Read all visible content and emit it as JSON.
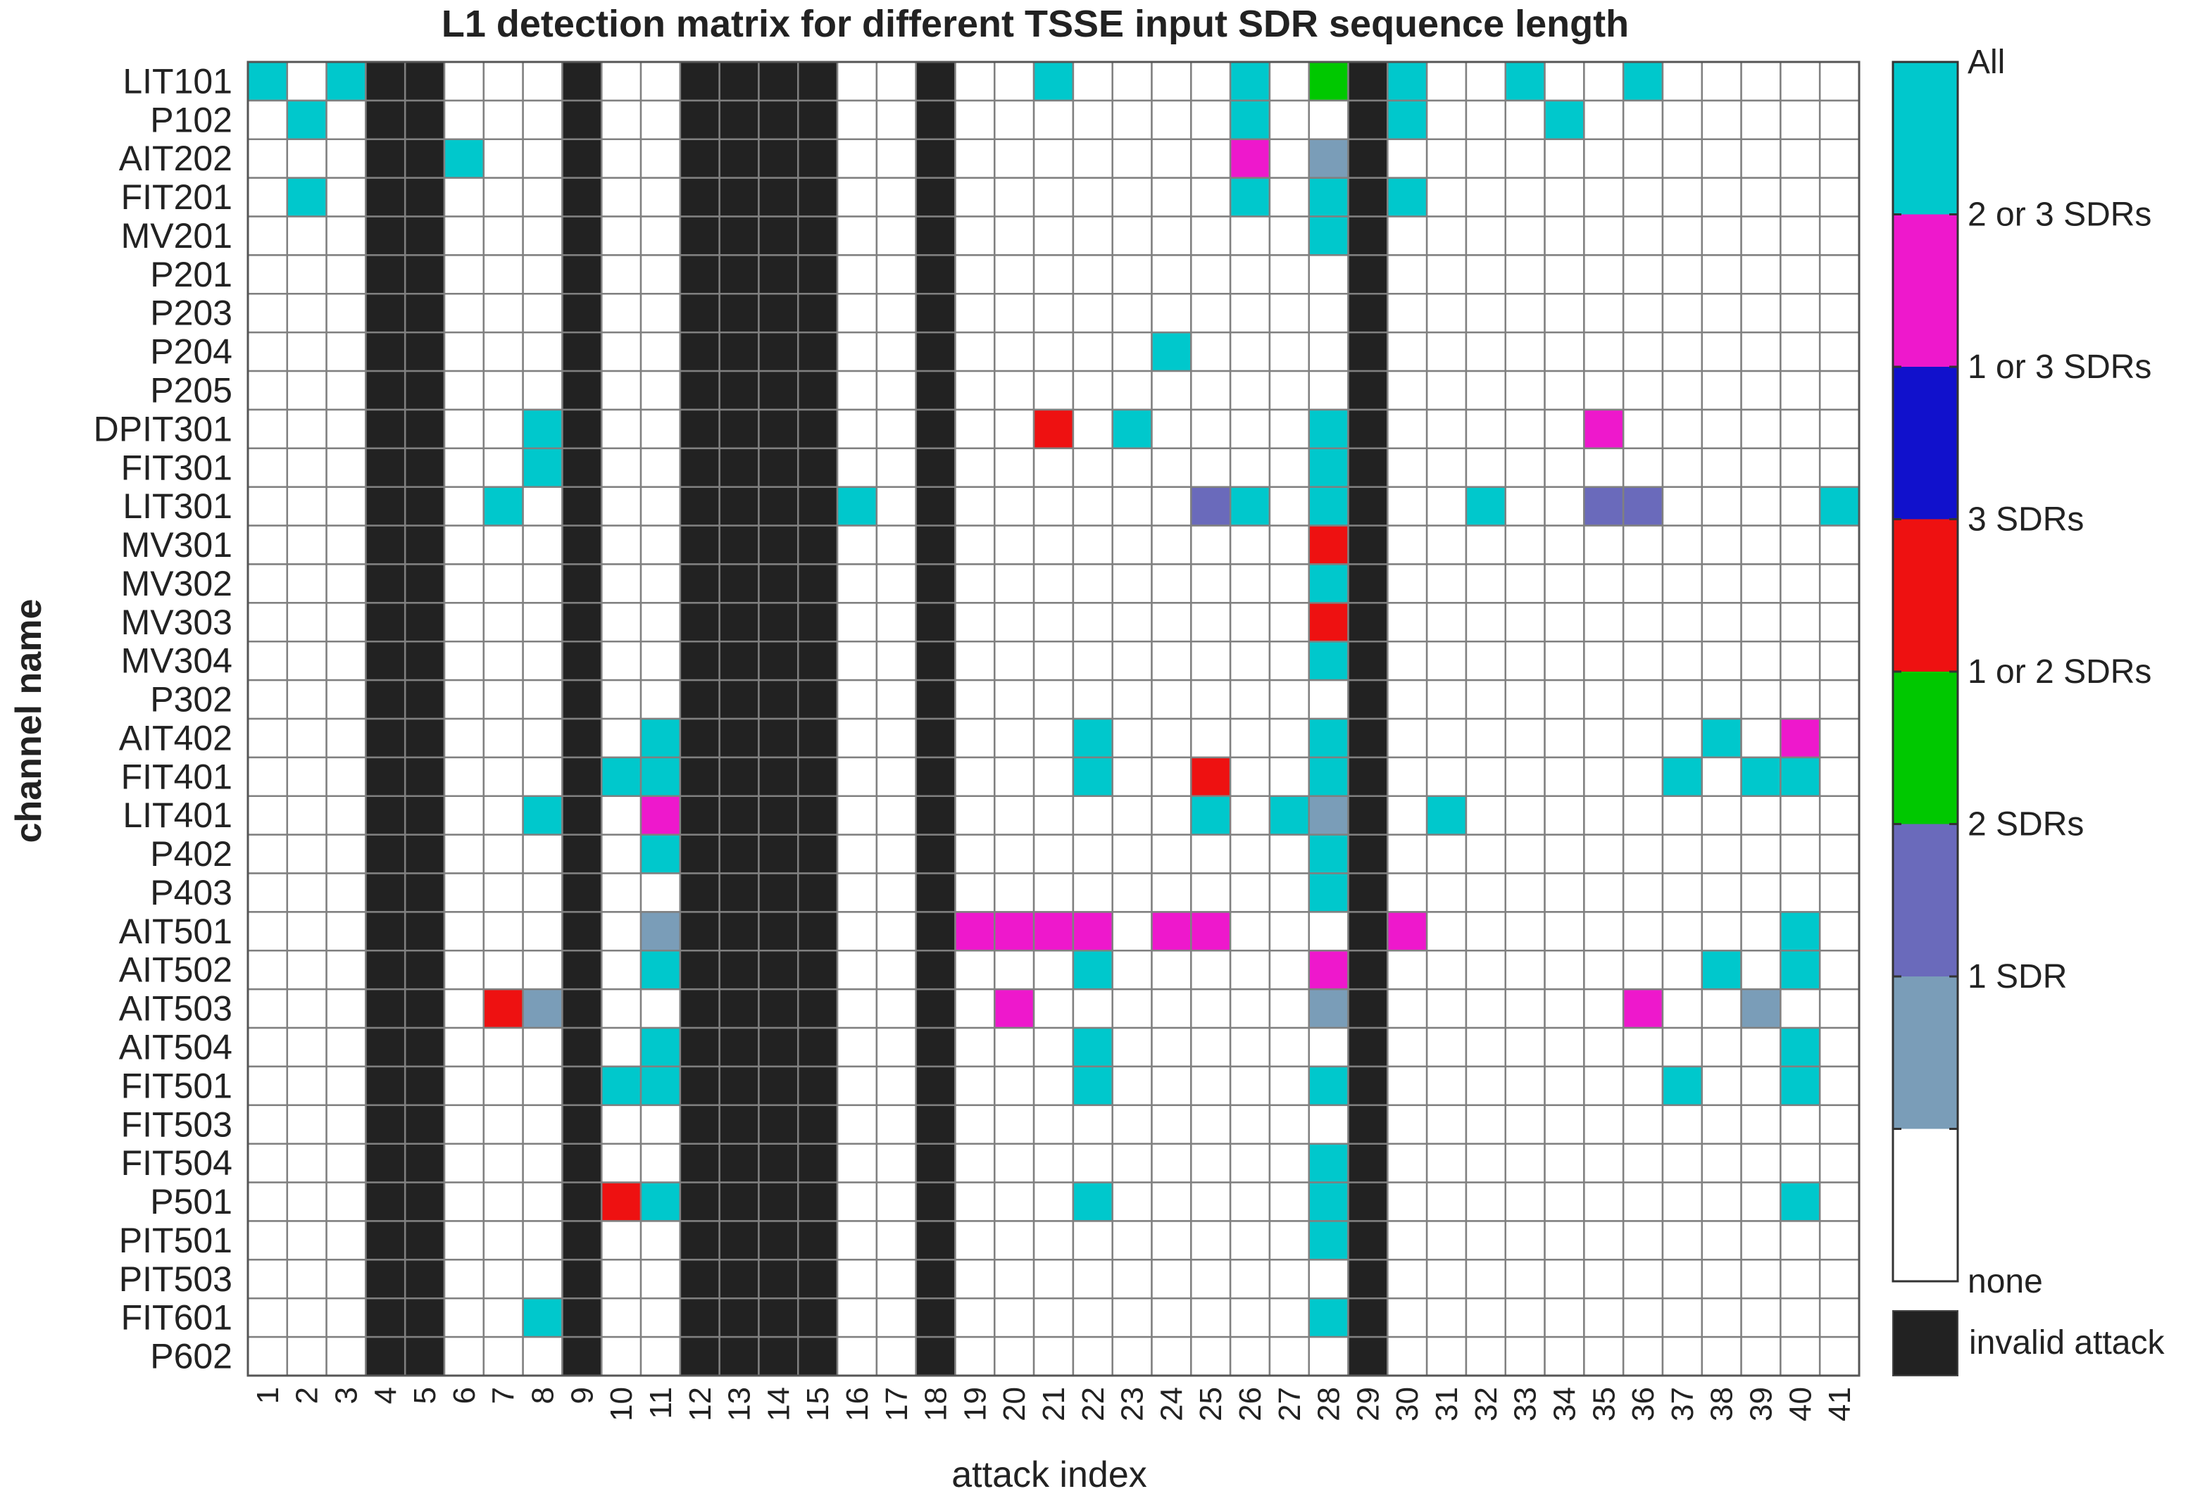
{
  "chart_data": {
    "type": "heatmap",
    "title": "L1 detection matrix for different TSSE input SDR sequence length",
    "xlabel": "attack index",
    "ylabel": "channel name",
    "x_ticks": [
      "1",
      "2",
      "3",
      "4",
      "5",
      "6",
      "7",
      "8",
      "9",
      "10",
      "11",
      "12",
      "13",
      "14",
      "15",
      "16",
      "17",
      "18",
      "19",
      "20",
      "21",
      "22",
      "23",
      "24",
      "25",
      "26",
      "27",
      "28",
      "29",
      "30",
      "31",
      "32",
      "33",
      "34",
      "35",
      "36",
      "37",
      "38",
      "39",
      "40",
      "41"
    ],
    "rows": [
      "LIT101",
      "P102",
      "AIT202",
      "FIT201",
      "MV201",
      "P201",
      "P203",
      "P204",
      "P205",
      "DPIT301",
      "FIT301",
      "LIT301",
      "MV301",
      "MV302",
      "MV303",
      "MV304",
      "P302",
      "AIT402",
      "FIT401",
      "LIT401",
      "P402",
      "P403",
      "AIT501",
      "AIT502",
      "AIT503",
      "AIT504",
      "FIT501",
      "FIT503",
      "FIT504",
      "P501",
      "PIT501",
      "PIT503",
      "FIT601",
      "P602"
    ],
    "invalid_attacks": [
      4,
      5,
      9,
      12,
      13,
      14,
      15,
      18,
      29
    ],
    "levels": [
      {
        "code": "none",
        "label": "none",
        "color": "#ffffff"
      },
      {
        "code": "1",
        "label": "1 SDR",
        "color": "#7a9db8"
      },
      {
        "code": "2",
        "label": "2 SDRs",
        "color": "#6a6abb"
      },
      {
        "code": "12",
        "label": "1 or 2 SDRs",
        "color": "#00c800"
      },
      {
        "code": "3",
        "label": "3 SDRs",
        "color": "#ee1111"
      },
      {
        "code": "13",
        "label": "1 or 3 SDRs",
        "color": "#1111cc"
      },
      {
        "code": "23",
        "label": "2 or 3 SDRs",
        "color": "#ee18cc"
      },
      {
        "code": "all",
        "label": "All",
        "color": "#00c8cc"
      }
    ],
    "invalid_label": "invalid attack",
    "invalid_color": "#222222",
    "cells": [
      [
        "LIT101",
        1,
        "all"
      ],
      [
        "LIT101",
        3,
        "all"
      ],
      [
        "LIT101",
        21,
        "all"
      ],
      [
        "LIT101",
        26,
        "all"
      ],
      [
        "LIT101",
        28,
        "12"
      ],
      [
        "LIT101",
        30,
        "all"
      ],
      [
        "LIT101",
        33,
        "all"
      ],
      [
        "LIT101",
        36,
        "all"
      ],
      [
        "P102",
        2,
        "all"
      ],
      [
        "P102",
        26,
        "all"
      ],
      [
        "P102",
        30,
        "all"
      ],
      [
        "P102",
        34,
        "all"
      ],
      [
        "AIT202",
        6,
        "all"
      ],
      [
        "AIT202",
        26,
        "23"
      ],
      [
        "AIT202",
        28,
        "1"
      ],
      [
        "FIT201",
        2,
        "all"
      ],
      [
        "FIT201",
        26,
        "all"
      ],
      [
        "FIT201",
        28,
        "all"
      ],
      [
        "FIT201",
        30,
        "all"
      ],
      [
        "MV201",
        28,
        "all"
      ],
      [
        "P204",
        24,
        "all"
      ],
      [
        "DPIT301",
        8,
        "all"
      ],
      [
        "DPIT301",
        21,
        "3"
      ],
      [
        "DPIT301",
        23,
        "all"
      ],
      [
        "DPIT301",
        28,
        "all"
      ],
      [
        "DPIT301",
        35,
        "23"
      ],
      [
        "FIT301",
        8,
        "all"
      ],
      [
        "FIT301",
        28,
        "all"
      ],
      [
        "LIT301",
        7,
        "all"
      ],
      [
        "LIT301",
        16,
        "all"
      ],
      [
        "LIT301",
        25,
        "2"
      ],
      [
        "LIT301",
        26,
        "all"
      ],
      [
        "LIT301",
        28,
        "all"
      ],
      [
        "LIT301",
        32,
        "all"
      ],
      [
        "LIT301",
        35,
        "2"
      ],
      [
        "LIT301",
        36,
        "2"
      ],
      [
        "LIT301",
        41,
        "all"
      ],
      [
        "MV301",
        28,
        "3"
      ],
      [
        "MV302",
        28,
        "all"
      ],
      [
        "MV303",
        28,
        "3"
      ],
      [
        "MV304",
        28,
        "all"
      ],
      [
        "AIT402",
        11,
        "all"
      ],
      [
        "AIT402",
        22,
        "all"
      ],
      [
        "AIT402",
        28,
        "all"
      ],
      [
        "AIT402",
        38,
        "all"
      ],
      [
        "AIT402",
        40,
        "23"
      ],
      [
        "FIT401",
        10,
        "all"
      ],
      [
        "FIT401",
        11,
        "all"
      ],
      [
        "FIT401",
        22,
        "all"
      ],
      [
        "FIT401",
        25,
        "3"
      ],
      [
        "FIT401",
        28,
        "all"
      ],
      [
        "FIT401",
        37,
        "all"
      ],
      [
        "FIT401",
        39,
        "all"
      ],
      [
        "FIT401",
        40,
        "all"
      ],
      [
        "LIT401",
        8,
        "all"
      ],
      [
        "LIT401",
        11,
        "23"
      ],
      [
        "LIT401",
        25,
        "all"
      ],
      [
        "LIT401",
        27,
        "all"
      ],
      [
        "LIT401",
        28,
        "1"
      ],
      [
        "LIT401",
        31,
        "all"
      ],
      [
        "P402",
        11,
        "all"
      ],
      [
        "P402",
        28,
        "all"
      ],
      [
        "P403",
        28,
        "all"
      ],
      [
        "AIT501",
        11,
        "1"
      ],
      [
        "AIT501",
        19,
        "23"
      ],
      [
        "AIT501",
        20,
        "23"
      ],
      [
        "AIT501",
        21,
        "23"
      ],
      [
        "AIT501",
        22,
        "23"
      ],
      [
        "AIT501",
        24,
        "23"
      ],
      [
        "AIT501",
        25,
        "23"
      ],
      [
        "AIT501",
        30,
        "23"
      ],
      [
        "AIT501",
        40,
        "all"
      ],
      [
        "AIT502",
        11,
        "all"
      ],
      [
        "AIT502",
        22,
        "all"
      ],
      [
        "AIT502",
        28,
        "23"
      ],
      [
        "AIT502",
        38,
        "all"
      ],
      [
        "AIT502",
        40,
        "all"
      ],
      [
        "AIT503",
        7,
        "3"
      ],
      [
        "AIT503",
        8,
        "1"
      ],
      [
        "AIT503",
        20,
        "23"
      ],
      [
        "AIT503",
        28,
        "1"
      ],
      [
        "AIT503",
        36,
        "23"
      ],
      [
        "AIT503",
        39,
        "1"
      ],
      [
        "AIT504",
        11,
        "all"
      ],
      [
        "AIT504",
        22,
        "all"
      ],
      [
        "AIT504",
        40,
        "all"
      ],
      [
        "FIT501",
        10,
        "all"
      ],
      [
        "FIT501",
        11,
        "all"
      ],
      [
        "FIT501",
        22,
        "all"
      ],
      [
        "FIT501",
        28,
        "all"
      ],
      [
        "FIT501",
        37,
        "all"
      ],
      [
        "FIT501",
        40,
        "all"
      ],
      [
        "FIT504",
        28,
        "all"
      ],
      [
        "P501",
        10,
        "3"
      ],
      [
        "P501",
        11,
        "all"
      ],
      [
        "P501",
        22,
        "all"
      ],
      [
        "P501",
        28,
        "all"
      ],
      [
        "P501",
        40,
        "all"
      ],
      [
        "PIT501",
        28,
        "all"
      ],
      [
        "FIT601",
        8,
        "all"
      ],
      [
        "FIT601",
        28,
        "all"
      ]
    ],
    "colorbar_labels": [
      "All",
      "2 or 3 SDRs",
      "1 or 3 SDRs",
      "3 SDRs",
      "1 or 2 SDRs",
      "2 SDRs",
      "1 SDR",
      "none"
    ]
  }
}
